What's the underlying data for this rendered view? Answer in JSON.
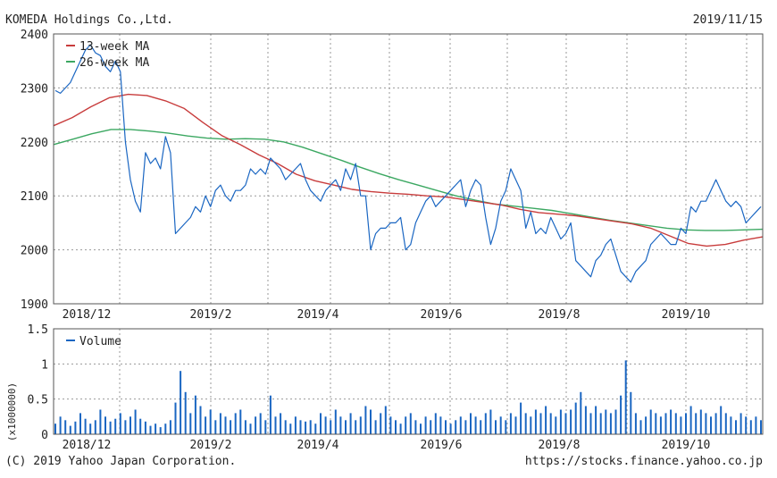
{
  "header": {
    "company": "KOMEDA Holdings Co.,Ltd.",
    "date": "2019/11/15"
  },
  "footer": {
    "copyright": "(C) 2019 Yahoo Japan Corporation.",
    "url": "https://stocks.finance.yahoo.co.jp"
  },
  "colors": {
    "price": "#1a66c2",
    "ma13": "#c83c3c",
    "ma26": "#3ca862",
    "volume": "#1a66c2",
    "grid": "#999999",
    "frame": "#555555"
  },
  "chart_data": [
    {
      "type": "line",
      "ylim": [
        1900,
        2400
      ],
      "ytick_labels": [
        "2400",
        "2300",
        "2200",
        "2100",
        "2000",
        "1900"
      ],
      "xtick_labels": [
        "2018/12",
        "2019/2",
        "2019/4",
        "2019/6",
        "2019/8",
        "2019/10"
      ],
      "legend": [
        "13-week MA",
        "26-week MA"
      ],
      "legend_position": "top-left",
      "grid": true,
      "series": [
        {
          "name": "Price",
          "values": [
            2295,
            2290,
            2300,
            2310,
            2330,
            2350,
            2370,
            2380,
            2365,
            2360,
            2340,
            2330,
            2350,
            2330,
            2200,
            2130,
            2090,
            2070,
            2180,
            2160,
            2170,
            2150,
            2210,
            2180,
            2030,
            2040,
            2050,
            2060,
            2080,
            2070,
            2100,
            2080,
            2110,
            2120,
            2100,
            2090,
            2110,
            2110,
            2120,
            2150,
            2140,
            2150,
            2140,
            2170,
            2160,
            2150,
            2130,
            2140,
            2150,
            2160,
            2130,
            2110,
            2100,
            2090,
            2110,
            2120,
            2130,
            2110,
            2150,
            2130,
            2160,
            2100,
            2100,
            2000,
            2030,
            2040,
            2040,
            2050,
            2050,
            2060,
            2000,
            2010,
            2050,
            2070,
            2090,
            2100,
            2080,
            2090,
            2100,
            2110,
            2120,
            2130,
            2080,
            2110,
            2130,
            2120,
            2060,
            2010,
            2040,
            2090,
            2110,
            2150,
            2130,
            2110,
            2040,
            2070,
            2030,
            2040,
            2030,
            2060,
            2040,
            2020,
            2030,
            2050,
            1980,
            1970,
            1960,
            1950,
            1980,
            1990,
            2010,
            2020,
            1990,
            1960,
            1950,
            1940,
            1960,
            1970,
            1980,
            2010,
            2020,
            2030,
            2020,
            2010,
            2010,
            2040,
            2030,
            2080,
            2070,
            2090,
            2090,
            2110,
            2130,
            2110,
            2090,
            2080,
            2090,
            2080,
            2050,
            2060,
            2070,
            2080
          ]
        },
        {
          "name": "13-week MA",
          "values": [
            2230,
            2245,
            2265,
            2282,
            2288,
            2286,
            2276,
            2262,
            2236,
            2212,
            2195,
            2176,
            2160,
            2140,
            2128,
            2120,
            2112,
            2108,
            2105,
            2103,
            2100,
            2098,
            2093,
            2088,
            2083,
            2075,
            2069,
            2066,
            2063,
            2058,
            2053,
            2048,
            2040,
            2026,
            2012,
            2007,
            2010,
            2018,
            2024
          ]
        },
        {
          "name": "26-week MA",
          "values": [
            2195,
            2205,
            2215,
            2223,
            2223,
            2220,
            2216,
            2211,
            2207,
            2205,
            2206,
            2205,
            2200,
            2190,
            2178,
            2166,
            2153,
            2141,
            2130,
            2120,
            2110,
            2100,
            2092,
            2085,
            2081,
            2077,
            2073,
            2067,
            2061,
            2055,
            2050,
            2045,
            2040,
            2037,
            2036,
            2036,
            2037,
            2038
          ]
        }
      ]
    },
    {
      "type": "bar",
      "ylim": [
        0,
        1.5
      ],
      "ytick_labels": [
        "1.5",
        "1",
        "0.5",
        "0"
      ],
      "ylabel": "(x1000000)",
      "xtick_labels": [
        "2018/12",
        "2019/2",
        "2019/4",
        "2019/6",
        "2019/8",
        "2019/10"
      ],
      "legend": [
        "Volume"
      ],
      "legend_position": "top-left",
      "grid": true,
      "series": [
        {
          "name": "Volume",
          "values": [
            0.15,
            0.25,
            0.2,
            0.12,
            0.18,
            0.3,
            0.22,
            0.15,
            0.2,
            0.35,
            0.25,
            0.18,
            0.22,
            0.3,
            0.2,
            0.25,
            0.35,
            0.22,
            0.18,
            0.12,
            0.15,
            0.1,
            0.15,
            0.2,
            0.45,
            0.9,
            0.6,
            0.3,
            0.55,
            0.4,
            0.25,
            0.35,
            0.2,
            0.3,
            0.25,
            0.2,
            0.3,
            0.35,
            0.2,
            0.15,
            0.25,
            0.3,
            0.2,
            0.55,
            0.25,
            0.3,
            0.2,
            0.15,
            0.25,
            0.2,
            0.18,
            0.2,
            0.15,
            0.3,
            0.25,
            0.2,
            0.35,
            0.25,
            0.2,
            0.3,
            0.2,
            0.25,
            0.4,
            0.35,
            0.2,
            0.3,
            0.4,
            0.25,
            0.2,
            0.15,
            0.25,
            0.3,
            0.2,
            0.15,
            0.25,
            0.2,
            0.3,
            0.25,
            0.2,
            0.15,
            0.2,
            0.25,
            0.2,
            0.3,
            0.25,
            0.2,
            0.3,
            0.35,
            0.2,
            0.25,
            0.2,
            0.3,
            0.25,
            0.45,
            0.3,
            0.25,
            0.35,
            0.3,
            0.4,
            0.3,
            0.25,
            0.35,
            0.3,
            0.35,
            0.45,
            0.6,
            0.4,
            0.3,
            0.4,
            0.3,
            0.35,
            0.3,
            0.35,
            0.55,
            1.05,
            0.6,
            0.3,
            0.2,
            0.25,
            0.35,
            0.3,
            0.25,
            0.3,
            0.35,
            0.3,
            0.25,
            0.3,
            0.4,
            0.3,
            0.35,
            0.3,
            0.25,
            0.3,
            0.4,
            0.3,
            0.25,
            0.2,
            0.3,
            0.25,
            0.2,
            0.25,
            0.2
          ]
        }
      ]
    }
  ]
}
